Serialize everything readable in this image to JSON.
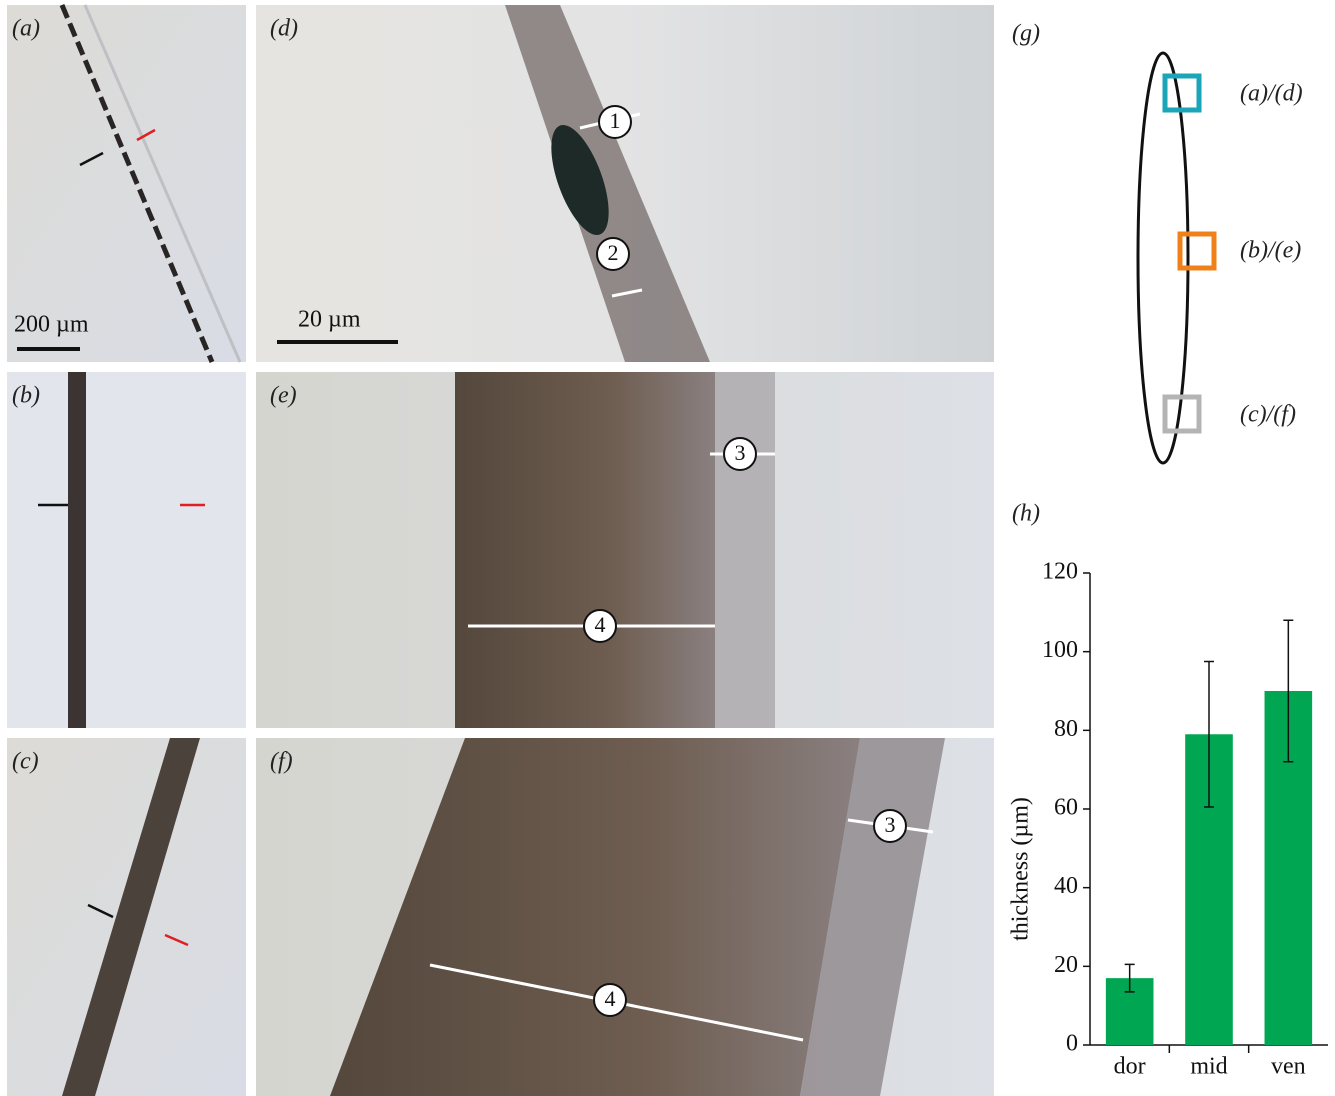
{
  "panels": [
    {
      "label": "(a)",
      "scale_bar": "200 µm"
    },
    {
      "label": "(b)"
    },
    {
      "label": "(c)"
    },
    {
      "label": "(d)",
      "scale_bar": "20 µm",
      "markers": [
        "1",
        "2"
      ]
    },
    {
      "label": "(e)",
      "markers": [
        "3",
        "4"
      ]
    },
    {
      "label": "(f)",
      "markers": [
        "3",
        "4"
      ]
    },
    {
      "label": "(g)",
      "locations": [
        "(a)/(d)",
        "(b)/(e)",
        "(c)/(f)"
      ]
    },
    {
      "label": "(h)"
    }
  ],
  "chart_data": {
    "type": "bar",
    "ylabel": "thickness (µm)",
    "categories": [
      "dor",
      "mid",
      "ven"
    ],
    "values": [
      17,
      79,
      90
    ],
    "errors": [
      3.5,
      18.5,
      18
    ],
    "color": "#00a651",
    "ylim": [
      0,
      120
    ],
    "yticks": [
      0,
      20,
      40,
      60,
      80,
      100,
      120
    ]
  }
}
